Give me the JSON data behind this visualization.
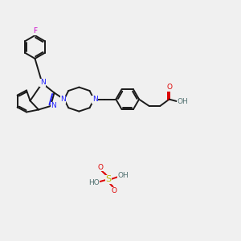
{
  "background_color": "#f0f0f0",
  "bond_color": "#1a1a1a",
  "n_color": "#2020ff",
  "o_color": "#dd0000",
  "f_color": "#cc00cc",
  "s_color": "#b8b800",
  "h_color": "#507070",
  "figsize": [
    3.0,
    3.0
  ],
  "dpi": 100,
  "xlim": [
    0,
    10
  ],
  "ylim": [
    0,
    10
  ]
}
